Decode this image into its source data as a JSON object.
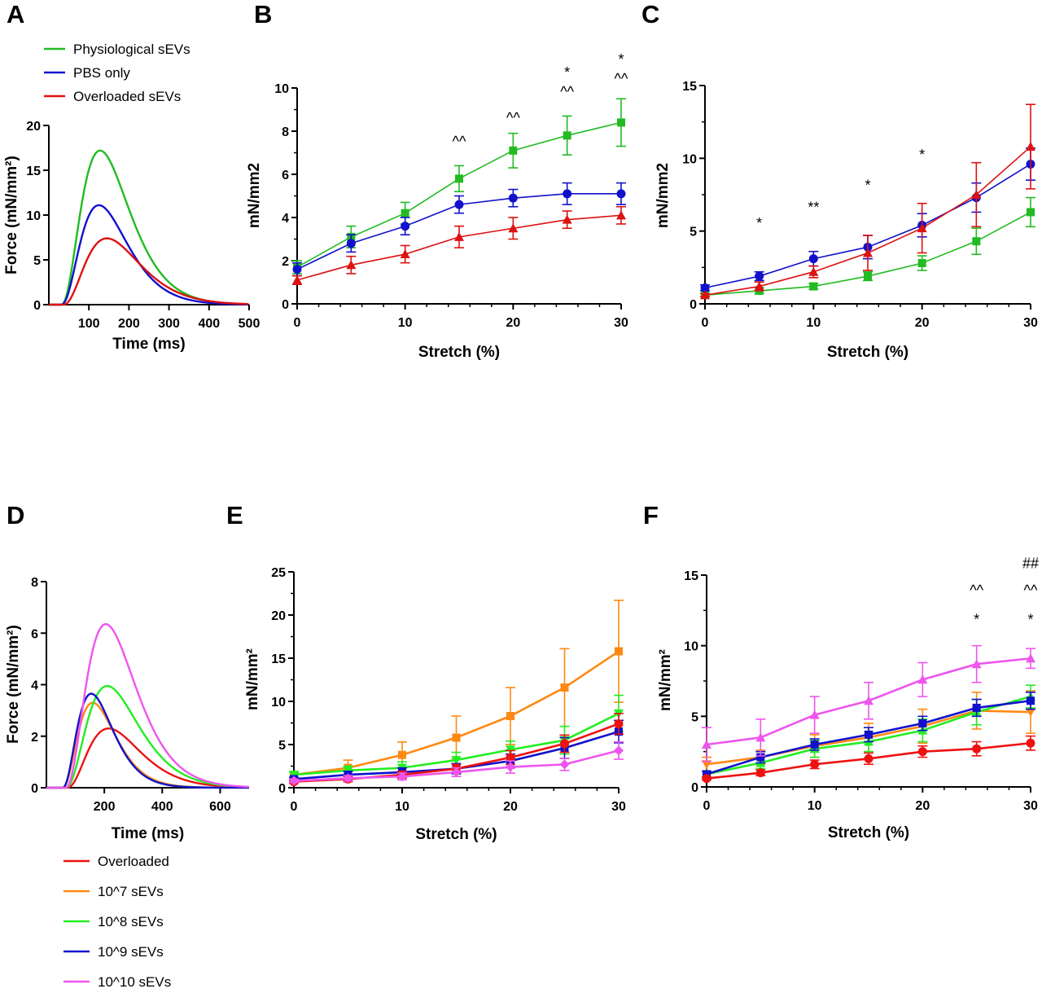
{
  "panels": [
    {
      "id": "A",
      "label": "A"
    },
    {
      "id": "B",
      "label": "B"
    },
    {
      "id": "C",
      "label": "C"
    },
    {
      "id": "D",
      "label": "D"
    },
    {
      "id": "E",
      "label": "E"
    },
    {
      "id": "F",
      "label": "F"
    }
  ],
  "chart_data": [
    {
      "panel": "A",
      "type": "line",
      "xlabel": "Time (ms)",
      "ylabel": "Force (mN/mm²)",
      "xlim": [
        0,
        500
      ],
      "ylim": [
        0,
        20
      ],
      "xticks": [
        100,
        200,
        300,
        400,
        500
      ],
      "yticks": [
        0,
        5,
        10,
        15,
        20
      ],
      "legend": "top-left",
      "series": [
        {
          "name": "Physiological sEVs",
          "color": "#22bb22",
          "peak_x": 128,
          "peak_y": 17.2,
          "onset": 30
        },
        {
          "name": "PBS only",
          "color": "#1111cc",
          "peak_x": 125,
          "peak_y": 11.1,
          "onset": 30
        },
        {
          "name": "Overloaded sEVs",
          "color": "#dd1111",
          "peak_x": 145,
          "peak_y": 7.4,
          "onset": 35
        }
      ]
    },
    {
      "panel": "B",
      "type": "line",
      "xlabel": "Stretch (%)",
      "ylabel": "mN/mm2",
      "xlim": [
        0,
        30
      ],
      "ylim": [
        0,
        10
      ],
      "xticks": [
        0,
        10,
        20,
        30
      ],
      "yticks": [
        0,
        2,
        4,
        6,
        8,
        10
      ],
      "x": [
        0,
        5,
        10,
        15,
        20,
        25,
        30
      ],
      "series": [
        {
          "name": "Physiological sEVs",
          "color": "#22bb22",
          "marker": "square",
          "values": [
            1.7,
            3.1,
            4.2,
            5.8,
            7.1,
            7.8,
            8.4
          ],
          "err": [
            0.3,
            0.5,
            0.5,
            0.6,
            0.8,
            0.9,
            1.1
          ]
        },
        {
          "name": "PBS only",
          "color": "#1111cc",
          "marker": "circle",
          "values": [
            1.6,
            2.8,
            3.6,
            4.6,
            4.9,
            5.1,
            5.1
          ],
          "err": [
            0.3,
            0.4,
            0.4,
            0.4,
            0.4,
            0.5,
            0.5
          ]
        },
        {
          "name": "Overloaded sEVs",
          "color": "#dd1111",
          "marker": "triangle",
          "values": [
            1.1,
            1.8,
            2.3,
            3.1,
            3.5,
            3.9,
            4.1
          ],
          "err": [
            0.2,
            0.4,
            0.4,
            0.5,
            0.5,
            0.4,
            0.4
          ]
        }
      ],
      "annotations": [
        {
          "x": 15,
          "y": 7.3,
          "text": "^^"
        },
        {
          "x": 20,
          "y": 8.4,
          "text": "^^"
        },
        {
          "x": 25,
          "y": 9.6,
          "text": "^^"
        },
        {
          "x": 25,
          "y": 10.5,
          "text": "*"
        },
        {
          "x": 30,
          "y": 10.2,
          "text": "^^"
        },
        {
          "x": 30,
          "y": 11.1,
          "text": "*"
        }
      ]
    },
    {
      "panel": "C",
      "type": "line",
      "xlabel": "Stretch (%)",
      "ylabel": "mN/mm2",
      "xlim": [
        0,
        30
      ],
      "ylim": [
        0,
        15
      ],
      "xticks": [
        0,
        10,
        20,
        30
      ],
      "yticks": [
        0,
        5,
        10,
        15
      ],
      "x": [
        0,
        5,
        10,
        15,
        20,
        25,
        30
      ],
      "series": [
        {
          "name": "Physiological sEVs",
          "color": "#22bb22",
          "marker": "square",
          "values": [
            0.6,
            0.9,
            1.2,
            1.9,
            2.8,
            4.3,
            6.3
          ],
          "err": [
            0.1,
            0.2,
            0.2,
            0.3,
            0.5,
            0.9,
            1.0
          ]
        },
        {
          "name": "PBS only",
          "color": "#1111cc",
          "marker": "circle",
          "values": [
            1.1,
            1.9,
            3.1,
            3.9,
            5.4,
            7.3,
            9.6
          ],
          "err": [
            0.2,
            0.3,
            0.5,
            0.8,
            0.8,
            1.0,
            1.1
          ]
        },
        {
          "name": "Overloaded sEVs",
          "color": "#dd1111",
          "marker": "triangle",
          "values": [
            0.6,
            1.2,
            2.2,
            3.5,
            5.2,
            7.5,
            10.8
          ],
          "err": [
            0.1,
            0.3,
            0.4,
            1.2,
            1.7,
            2.2,
            2.9
          ]
        }
      ],
      "annotations": [
        {
          "x": 5,
          "y": 5.2,
          "text": "*"
        },
        {
          "x": 10,
          "y": 6.3,
          "text": "**"
        },
        {
          "x": 15,
          "y": 7.8,
          "text": "*"
        },
        {
          "x": 20,
          "y": 9.9,
          "text": "*"
        }
      ]
    },
    {
      "panel": "D",
      "type": "line",
      "xlabel": "Time (ms)",
      "ylabel": "Force (mN/mm²)",
      "xlim": [
        0,
        700
      ],
      "ylim": [
        0,
        8
      ],
      "xticks": [
        200,
        400,
        600
      ],
      "yticks": [
        0,
        2,
        4,
        6,
        8
      ],
      "legend": "bottom",
      "series": [
        {
          "name": "Overloaded",
          "color": "#ee1111",
          "peak_x": 215,
          "peak_y": 2.3,
          "onset": 70
        },
        {
          "name": "10^7 sEVs",
          "color": "#ff8811",
          "peak_x": 160,
          "peak_y": 3.3,
          "onset": 55
        },
        {
          "name": "10^8 sEVs",
          "color": "#22ee22",
          "peak_x": 210,
          "peak_y": 3.95,
          "onset": 65
        },
        {
          "name": "10^9 sEVs",
          "color": "#1111cc",
          "peak_x": 155,
          "peak_y": 3.65,
          "onset": 55
        },
        {
          "name": "10^10 sEVs",
          "color": "#ee55ee",
          "peak_x": 205,
          "peak_y": 6.35,
          "onset": 65
        }
      ]
    },
    {
      "panel": "E",
      "type": "line",
      "xlabel": "Stretch (%)",
      "ylabel": "mN/mm²",
      "xlim": [
        0,
        30
      ],
      "ylim": [
        0,
        25
      ],
      "xticks": [
        0,
        10,
        20,
        30
      ],
      "yticks": [
        0,
        5,
        10,
        15,
        20,
        25
      ],
      "x": [
        0,
        5,
        10,
        15,
        20,
        25,
        30
      ],
      "series": [
        {
          "name": "10^7 sEVs",
          "color": "#ff8811",
          "marker": "square",
          "values": [
            1.5,
            2.3,
            3.8,
            5.8,
            8.3,
            11.6,
            15.8
          ],
          "err": [
            0.3,
            0.9,
            1.5,
            2.5,
            3.3,
            4.5,
            5.9
          ]
        },
        {
          "name": "10^8 sEVs",
          "color": "#22ee22",
          "marker": "triangle-down",
          "values": [
            1.5,
            2.0,
            2.3,
            3.2,
            4.4,
            5.5,
            8.6
          ],
          "err": [
            0.3,
            0.5,
            0.7,
            0.9,
            1.0,
            1.6,
            2.1
          ]
        },
        {
          "name": "10^9 sEVs",
          "color": "#1111cc",
          "marker": "square",
          "values": [
            1.0,
            1.5,
            1.8,
            2.2,
            3.1,
            4.6,
            6.5
          ],
          "err": [
            0.2,
            0.4,
            0.5,
            0.6,
            0.8,
            1.2,
            1.3
          ]
        },
        {
          "name": "Overloaded",
          "color": "#ee1111",
          "marker": "circle",
          "values": [
            0.7,
            1.0,
            1.5,
            2.2,
            3.5,
            5.1,
            7.4
          ],
          "err": [
            0.2,
            0.3,
            0.4,
            0.5,
            0.8,
            1.0,
            1.2
          ]
        },
        {
          "name": "10^10 sEVs",
          "color": "#ee55ee",
          "marker": "diamond",
          "values": [
            0.8,
            1.1,
            1.3,
            1.8,
            2.4,
            2.7,
            4.3
          ],
          "err": [
            0.2,
            0.3,
            0.4,
            0.5,
            0.7,
            0.7,
            1.0
          ]
        }
      ],
      "annotations": []
    },
    {
      "panel": "F",
      "type": "line",
      "xlabel": "Stretch (%)",
      "ylabel": "mN/mm²",
      "xlim": [
        0,
        30
      ],
      "ylim": [
        0,
        15
      ],
      "xticks": [
        0,
        10,
        20,
        30
      ],
      "yticks": [
        0,
        5,
        10,
        15
      ],
      "x": [
        0,
        5,
        10,
        15,
        20,
        25,
        30
      ],
      "series": [
        {
          "name": "10^7 sEVs",
          "color": "#ff8811",
          "marker": "triangle-down",
          "values": [
            1.6,
            2.1,
            2.9,
            3.5,
            4.3,
            5.4,
            5.3
          ],
          "err": [
            0.5,
            0.5,
            0.8,
            1.0,
            1.2,
            1.3,
            1.5
          ]
        },
        {
          "name": "10^8 sEVs",
          "color": "#22ee22",
          "marker": "triangle",
          "values": [
            0.9,
            1.7,
            2.7,
            3.2,
            4.0,
            5.3,
            6.4
          ],
          "err": [
            0.2,
            0.4,
            0.6,
            0.7,
            0.8,
            0.9,
            0.8
          ]
        },
        {
          "name": "10^9 sEVs",
          "color": "#1111cc",
          "marker": "square",
          "values": [
            0.9,
            2.1,
            3.0,
            3.7,
            4.5,
            5.6,
            6.1
          ],
          "err": [
            0.2,
            0.4,
            0.4,
            0.5,
            0.5,
            0.6,
            0.6
          ]
        },
        {
          "name": "Overloaded",
          "color": "#ee1111",
          "marker": "circle",
          "values": [
            0.6,
            1.0,
            1.6,
            2.0,
            2.5,
            2.7,
            3.1
          ],
          "err": [
            0.1,
            0.2,
            0.3,
            0.4,
            0.4,
            0.5,
            0.5
          ]
        },
        {
          "name": "10^10 sEVs",
          "color": "#ee55ee",
          "marker": "triangle",
          "values": [
            3.0,
            3.5,
            5.1,
            6.1,
            7.6,
            8.7,
            9.1
          ],
          "err": [
            1.2,
            1.3,
            1.3,
            1.3,
            1.2,
            1.3,
            0.7
          ]
        }
      ],
      "annotations": [
        {
          "x": 25,
          "y": 13.6,
          "text": "^^"
        },
        {
          "x": 25,
          "y": 11.5,
          "text": "*"
        },
        {
          "x": 30,
          "y": 15.5,
          "text": "##"
        },
        {
          "x": 30,
          "y": 13.6,
          "text": "^^"
        },
        {
          "x": 30,
          "y": 11.5,
          "text": "*"
        }
      ]
    }
  ]
}
